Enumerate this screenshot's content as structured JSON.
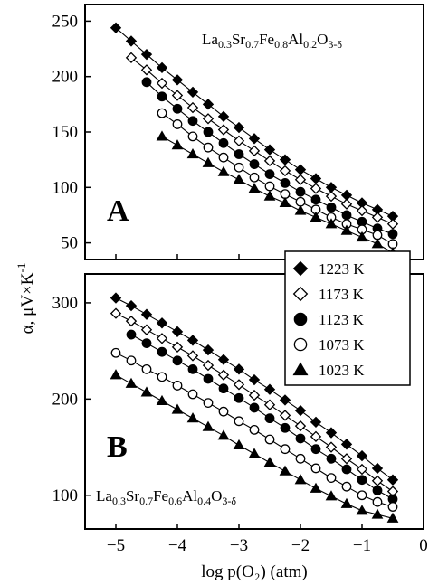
{
  "chart_data": [
    {
      "panel": "A",
      "type": "scatter",
      "annotation": {
        "parts": [
          {
            "t": "La",
            "sub": false
          },
          {
            "t": "0.3",
            "sub": true
          },
          {
            "t": "Sr",
            "sub": false
          },
          {
            "t": "0.7",
            "sub": true
          },
          {
            "t": "Fe",
            "sub": false
          },
          {
            "t": "0.8",
            "sub": true
          },
          {
            "t": "Al",
            "sub": false
          },
          {
            "t": "0.2",
            "sub": true
          },
          {
            "t": "O",
            "sub": false
          },
          {
            "t": "3-δ",
            "sub": true
          }
        ]
      },
      "xlim": [
        -5.5,
        0
      ],
      "ylim": [
        35,
        265
      ],
      "yticks": [
        50,
        100,
        150,
        200,
        250
      ],
      "series": [
        {
          "name": "1223 K",
          "marker": "diamond-filled",
          "x": [
            -5.0,
            -4.75,
            -4.5,
            -4.25,
            -4.0,
            -3.75,
            -3.5,
            -3.25,
            -3.0,
            -2.75,
            -2.5,
            -2.25,
            -2.0,
            -1.75,
            -1.5,
            -1.25,
            -1.0,
            -0.75,
            -0.5
          ],
          "y": [
            244,
            232,
            220,
            208,
            197,
            186,
            175,
            164,
            154,
            144,
            134,
            125,
            116,
            108,
            100,
            93,
            86,
            80,
            74
          ]
        },
        {
          "name": "1173 K",
          "marker": "diamond-open",
          "x": [
            -4.75,
            -4.5,
            -4.25,
            -4.0,
            -3.75,
            -3.5,
            -3.25,
            -3.0,
            -2.75,
            -2.5,
            -2.25,
            -2.0,
            -1.75,
            -1.5,
            -1.25,
            -1.0,
            -0.75,
            -0.5
          ],
          "y": [
            217,
            206,
            194,
            183,
            172,
            162,
            152,
            142,
            133,
            124,
            115,
            107,
            99,
            92,
            85,
            79,
            73,
            67
          ]
        },
        {
          "name": "1123 K",
          "marker": "circle-filled",
          "x": [
            -4.5,
            -4.25,
            -4.0,
            -3.75,
            -3.5,
            -3.25,
            -3.0,
            -2.75,
            -2.5,
            -2.25,
            -2.0,
            -1.75,
            -1.5,
            -1.25,
            -1.0,
            -0.75,
            -0.5
          ],
          "y": [
            195,
            182,
            171,
            160,
            150,
            140,
            130,
            121,
            112,
            104,
            96,
            89,
            82,
            75,
            69,
            63,
            58
          ]
        },
        {
          "name": "1073 K",
          "marker": "circle-open",
          "x": [
            -4.25,
            -4.0,
            -3.75,
            -3.5,
            -3.25,
            -3.0,
            -2.75,
            -2.5,
            -2.25,
            -2.0,
            -1.75,
            -1.5,
            -1.25,
            -1.0,
            -0.75,
            -0.5
          ],
          "y": [
            167,
            157,
            146,
            136,
            127,
            118,
            109,
            101,
            94,
            87,
            80,
            73,
            67,
            62,
            57,
            49
          ]
        },
        {
          "name": "1023 K",
          "marker": "triangle-filled",
          "x": [
            -4.25,
            -4.0,
            -3.75,
            -3.5,
            -3.25,
            -3.0,
            -2.75,
            -2.5,
            -2.25,
            -2.0,
            -1.75,
            -1.5,
            -1.25,
            -1.0,
            -0.75,
            -0.5
          ],
          "y": [
            146,
            138,
            130,
            122,
            114,
            107,
            99,
            92,
            86,
            79,
            73,
            67,
            61,
            55,
            49,
            41
          ]
        }
      ]
    },
    {
      "panel": "B",
      "type": "scatter",
      "annotation": {
        "parts": [
          {
            "t": "La",
            "sub": false
          },
          {
            "t": "0.3",
            "sub": true
          },
          {
            "t": "Sr",
            "sub": false
          },
          {
            "t": "0.7",
            "sub": true
          },
          {
            "t": "Fe",
            "sub": false
          },
          {
            "t": "0.6",
            "sub": true
          },
          {
            "t": "Al",
            "sub": false
          },
          {
            "t": "0.4",
            "sub": true
          },
          {
            "t": "O",
            "sub": false
          },
          {
            "t": "3-δ",
            "sub": true
          }
        ]
      },
      "xlabel": "log p(O₂) (atm)",
      "xlim": [
        -5.5,
        0
      ],
      "xticks": [
        -5,
        -4,
        -3,
        -2,
        -1,
        0
      ],
      "ylim": [
        65,
        330
      ],
      "yticks": [
        100,
        200,
        300
      ],
      "series": [
        {
          "name": "1223 K",
          "marker": "diamond-filled",
          "x": [
            -5.0,
            -4.75,
            -4.5,
            -4.25,
            -4.0,
            -3.75,
            -3.5,
            -3.25,
            -3.0,
            -2.75,
            -2.5,
            -2.25,
            -2.0,
            -1.75,
            -1.5,
            -1.25,
            -1.0,
            -0.75,
            -0.5
          ],
          "y": [
            305,
            297,
            288,
            279,
            270,
            261,
            251,
            241,
            231,
            220,
            210,
            199,
            188,
            176,
            165,
            153,
            141,
            128,
            116
          ]
        },
        {
          "name": "1173 K",
          "marker": "diamond-open",
          "x": [
            -5.0,
            -4.75,
            -4.5,
            -4.25,
            -4.0,
            -3.75,
            -3.5,
            -3.25,
            -3.0,
            -2.75,
            -2.5,
            -2.25,
            -2.0,
            -1.75,
            -1.5,
            -1.25,
            -1.0,
            -0.75,
            -0.5
          ],
          "y": [
            289,
            281,
            272,
            263,
            254,
            245,
            235,
            225,
            215,
            204,
            194,
            183,
            172,
            161,
            150,
            138,
            127,
            115,
            104
          ]
        },
        {
          "name": "1123 K",
          "marker": "circle-filled",
          "x": [
            -4.75,
            -4.5,
            -4.25,
            -4.0,
            -3.75,
            -3.5,
            -3.25,
            -3.0,
            -2.75,
            -2.5,
            -2.25,
            -2.0,
            -1.75,
            -1.5,
            -1.25,
            -1.0,
            -0.75,
            -0.5
          ],
          "y": [
            267,
            258,
            249,
            240,
            231,
            221,
            211,
            201,
            191,
            180,
            170,
            159,
            148,
            138,
            127,
            116,
            105,
            96
          ]
        },
        {
          "name": "1073 K",
          "marker": "circle-open",
          "x": [
            -5.0,
            -4.75,
            -4.5,
            -4.25,
            -4.0,
            -3.75,
            -3.5,
            -3.25,
            -3.0,
            -2.75,
            -2.5,
            -2.25,
            -2.0,
            -1.75,
            -1.5,
            -1.25,
            -1.0,
            -0.75,
            -0.5
          ],
          "y": [
            248,
            240,
            231,
            223,
            214,
            205,
            196,
            187,
            177,
            168,
            158,
            148,
            138,
            128,
            118,
            109,
            100,
            93,
            88
          ]
        },
        {
          "name": "1023 K",
          "marker": "triangle-filled",
          "x": [
            -5.0,
            -4.75,
            -4.5,
            -4.25,
            -4.0,
            -3.75,
            -3.5,
            -3.25,
            -3.0,
            -2.75,
            -2.5,
            -2.25,
            -2.0,
            -1.75,
            -1.5,
            -1.25,
            -1.0,
            -0.75,
            -0.5
          ],
          "y": [
            225,
            216,
            207,
            198,
            189,
            180,
            171,
            162,
            152,
            143,
            134,
            125,
            116,
            107,
            99,
            91,
            84,
            80,
            76
          ]
        }
      ]
    }
  ],
  "shared_ylabel": {
    "main": "α, μV×K",
    "sup": "-1"
  },
  "legend": {
    "placement": "between panels, right of center",
    "items": [
      {
        "label": "1223 K",
        "marker": "diamond-filled"
      },
      {
        "label": "1173 K",
        "marker": "diamond-open"
      },
      {
        "label": "1123 K",
        "marker": "circle-filled"
      },
      {
        "label": "1073 K",
        "marker": "circle-open"
      },
      {
        "label": "1023 K",
        "marker": "triangle-filled"
      }
    ]
  }
}
